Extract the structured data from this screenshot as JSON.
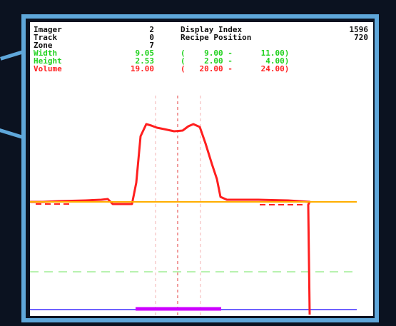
{
  "readout": {
    "imager_label": "Imager",
    "imager_value": "2",
    "track_label": "Track",
    "track_value": "0",
    "zone_label": "Zone",
    "zone_value": "7",
    "display_index_label": "Display Index",
    "display_index_value": "1596",
    "recipe_position_label": "Recipe Position",
    "recipe_position_value": "720",
    "width_label": "Width",
    "width_value": "9.05",
    "width_range": "(    9.00 -      11.00)",
    "height_label": "Height",
    "height_value": "2.53",
    "height_range": "(    2.00 -       4.00)",
    "volume_label": "Volume",
    "volume_value": "19.00",
    "volume_range": "(   20.00 -      24.00)"
  },
  "colors": {
    "background": "#0b1220",
    "frame": "#5fa7da",
    "panel": "#ffffff",
    "profile": "#ff1f1f",
    "baseline": "#ffae00",
    "guide": "#e33939",
    "status_bar": "#8a3cff",
    "magenta_bar": "#cc00ff",
    "green_dash": "#b8f2b0"
  }
}
